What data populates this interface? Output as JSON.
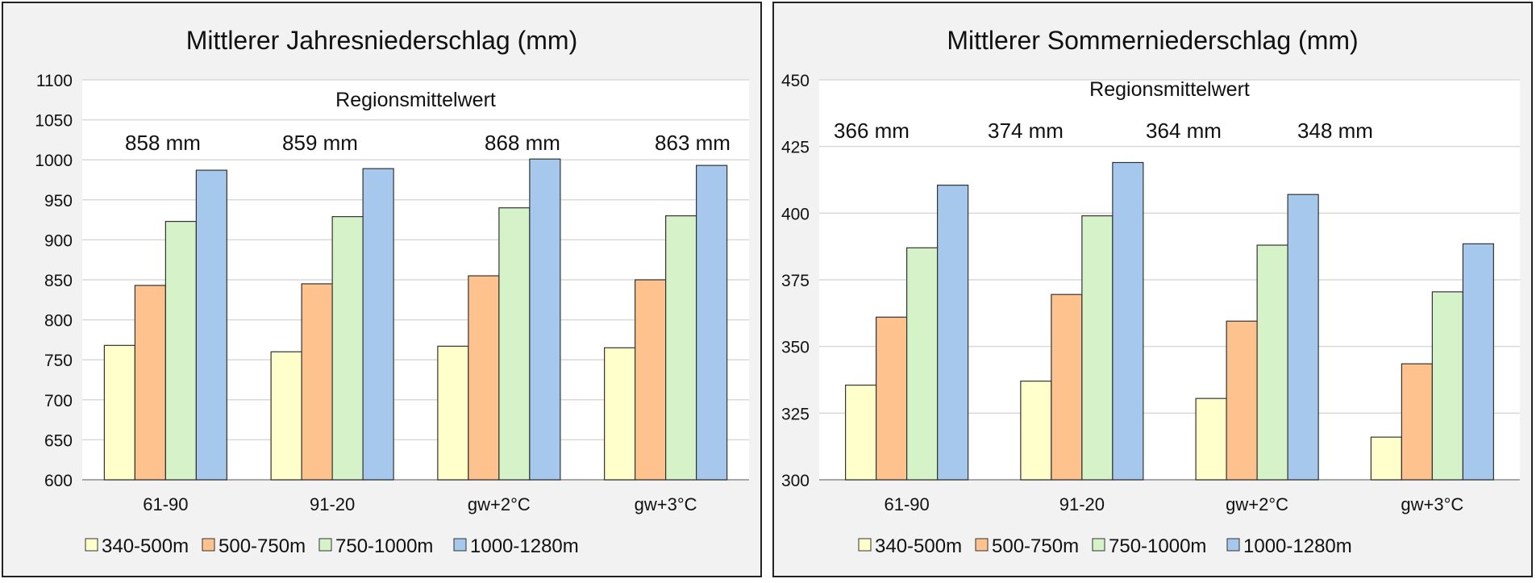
{
  "chart_data": [
    {
      "type": "bar",
      "title": "Mittlerer Jahresniederschlag (mm)",
      "ylim": [
        600,
        1100
      ],
      "yticks": [
        600,
        650,
        700,
        750,
        800,
        850,
        900,
        950,
        1000,
        1050,
        1100
      ],
      "categories": [
        "61-90",
        "91-20",
        "gw+2°C",
        "gw+3°C"
      ],
      "annotation": "Regionsmittelwert",
      "category_labels": [
        "858 mm",
        "859 mm",
        "868 mm",
        "863 mm"
      ],
      "grid": true,
      "legend_position": "bottom",
      "series": [
        {
          "name": "340-500m",
          "color": "#ffffcc",
          "values": [
            768,
            760,
            767,
            765
          ]
        },
        {
          "name": "500-750m",
          "color": "#fdc28d",
          "values": [
            843,
            845,
            855,
            850
          ]
        },
        {
          "name": "750-1000m",
          "color": "#d5f2c8",
          "values": [
            923,
            929,
            940,
            930
          ]
        },
        {
          "name": "1000-1280m",
          "color": "#a6c8ec",
          "values": [
            987,
            989,
            1001,
            993
          ]
        }
      ]
    },
    {
      "type": "bar",
      "title": "Mittlerer Sommerniederschlag (mm)",
      "ylim": [
        300,
        450
      ],
      "yticks": [
        300,
        325,
        350,
        375,
        400,
        425,
        450
      ],
      "categories": [
        "61-90",
        "91-20",
        "gw+2°C",
        "gw+3°C"
      ],
      "annotation": "Regionsmittelwert",
      "category_labels": [
        "366 mm",
        "374 mm",
        "364 mm",
        "348 mm"
      ],
      "grid": true,
      "legend_position": "bottom",
      "series": [
        {
          "name": "340-500m",
          "color": "#ffffcc",
          "values": [
            335.5,
            337,
            330.5,
            316
          ]
        },
        {
          "name": "500-750m",
          "color": "#fdc28d",
          "values": [
            361,
            369.5,
            359.5,
            343.5
          ]
        },
        {
          "name": "750-1000m",
          "color": "#d5f2c8",
          "values": [
            387,
            399,
            388,
            370.5
          ]
        },
        {
          "name": "1000-1280m",
          "color": "#a6c8ec",
          "values": [
            410.5,
            419,
            407,
            388.5
          ]
        }
      ]
    }
  ]
}
